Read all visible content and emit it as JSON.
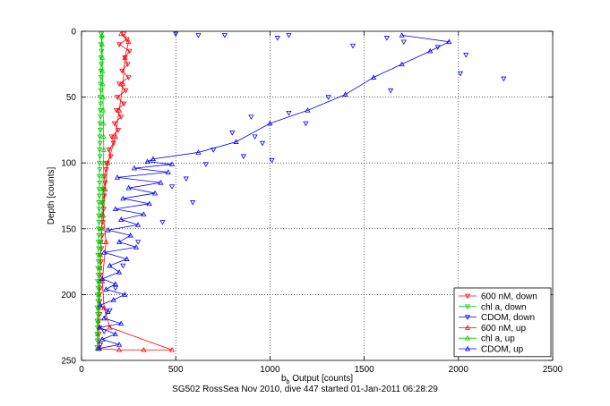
{
  "footer_text": "SG502 RossSea Nov 2010, dive 447 started 01-Jan-2011 06:28:29",
  "chart_data": {
    "type": "scatter",
    "title": "",
    "xlabel_main": "b",
    "xlabel_sub": "b",
    "xlabel_rest": " Output [counts]",
    "ylabel": "Depth [counts]",
    "xlim": [
      0,
      2500
    ],
    "ylim": [
      0,
      250
    ],
    "y_reversed": true,
    "xticks": [
      0,
      500,
      1000,
      1500,
      2000,
      2500
    ],
    "yticks": [
      0,
      50,
      100,
      150,
      200,
      250
    ],
    "grid": true,
    "legend_position": "bottom-right",
    "series": [
      {
        "name": "600 nM, down",
        "color": "#ff0000",
        "marker": "tri-down",
        "line": true,
        "points": [
          [
            225,
            2
          ],
          [
            240,
            6
          ],
          [
            200,
            10
          ],
          [
            255,
            15
          ],
          [
            230,
            20
          ],
          [
            245,
            25
          ],
          [
            215,
            30
          ],
          [
            250,
            35
          ],
          [
            200,
            40
          ],
          [
            235,
            45
          ],
          [
            190,
            50
          ],
          [
            225,
            55
          ],
          [
            185,
            60
          ],
          [
            210,
            65
          ],
          [
            175,
            70
          ],
          [
            195,
            75
          ],
          [
            160,
            80
          ],
          [
            170,
            85
          ],
          [
            145,
            90
          ],
          [
            155,
            95
          ],
          [
            135,
            100
          ],
          [
            130,
            105
          ],
          [
            120,
            110
          ],
          [
            125,
            115
          ],
          [
            115,
            120
          ],
          [
            120,
            125
          ],
          [
            110,
            130
          ],
          [
            118,
            135
          ],
          [
            108,
            140
          ],
          [
            112,
            145
          ],
          [
            105,
            150
          ],
          [
            110,
            155
          ],
          [
            102,
            160
          ],
          [
            106,
            165
          ],
          [
            100,
            170
          ],
          [
            104,
            175
          ],
          [
            98,
            180
          ],
          [
            100,
            185
          ],
          [
            96,
            190
          ],
          [
            99,
            195
          ],
          [
            95,
            200
          ],
          [
            97,
            205
          ],
          [
            94,
            210
          ],
          [
            96,
            215
          ],
          [
            93,
            220
          ],
          [
            95,
            225
          ],
          [
            92,
            230
          ],
          [
            94,
            235
          ],
          [
            93,
            240
          ]
        ]
      },
      {
        "name": "chl a, down",
        "color": "#00cc00",
        "marker": "tri-down",
        "line": true,
        "points": [
          [
            105,
            2
          ],
          [
            108,
            5
          ],
          [
            104,
            10
          ],
          [
            106,
            15
          ],
          [
            103,
            20
          ],
          [
            105,
            25
          ],
          [
            102,
            30
          ],
          [
            104,
            35
          ],
          [
            101,
            40
          ],
          [
            103,
            45
          ],
          [
            100,
            50
          ],
          [
            102,
            55
          ],
          [
            99,
            60
          ],
          [
            101,
            65
          ],
          [
            98,
            70
          ],
          [
            100,
            75
          ],
          [
            97,
            80
          ],
          [
            99,
            85
          ],
          [
            96,
            90
          ],
          [
            98,
            95
          ],
          [
            95,
            100
          ],
          [
            97,
            105
          ],
          [
            94,
            110
          ],
          [
            96,
            115
          ],
          [
            93,
            120
          ],
          [
            95,
            125
          ],
          [
            92,
            130
          ],
          [
            94,
            135
          ],
          [
            91,
            140
          ],
          [
            93,
            145
          ],
          [
            90,
            150
          ],
          [
            92,
            155
          ],
          [
            89,
            160
          ],
          [
            91,
            165
          ],
          [
            88,
            170
          ],
          [
            90,
            175
          ],
          [
            87,
            180
          ],
          [
            89,
            185
          ],
          [
            86,
            190
          ],
          [
            88,
            195
          ],
          [
            85,
            200
          ],
          [
            87,
            205
          ],
          [
            84,
            210
          ],
          [
            86,
            215
          ],
          [
            83,
            220
          ],
          [
            85,
            225
          ],
          [
            82,
            230
          ],
          [
            84,
            235
          ],
          [
            83,
            240
          ]
        ]
      },
      {
        "name": "CDOM, down",
        "color": "#0000ff",
        "marker": "tri-down",
        "line": false,
        "points": [
          [
            500,
            2
          ],
          [
            620,
            3
          ],
          [
            760,
            3
          ],
          [
            1040,
            5
          ],
          [
            1100,
            3
          ],
          [
            1620,
            5
          ],
          [
            1710,
            8
          ],
          [
            1440,
            11
          ],
          [
            1890,
            12
          ],
          [
            2040,
            18
          ],
          [
            2010,
            32
          ],
          [
            2240,
            36
          ],
          [
            1640,
            45
          ],
          [
            1310,
            50
          ],
          [
            1100,
            62
          ],
          [
            900,
            65
          ],
          [
            1190,
            70
          ],
          [
            800,
            77
          ],
          [
            920,
            80
          ],
          [
            960,
            85
          ],
          [
            700,
            90
          ],
          [
            860,
            95
          ],
          [
            1010,
            98
          ],
          [
            660,
            101
          ],
          [
            555,
            112
          ],
          [
            480,
            118
          ],
          [
            590,
            130
          ],
          [
            430,
            145
          ],
          [
            300,
            160
          ],
          [
            220,
            178
          ],
          [
            180,
            195
          ],
          [
            150,
            212
          ],
          [
            120,
            228
          ],
          [
            100,
            238
          ]
        ]
      },
      {
        "name": "600 nM, up",
        "color": "#ff0000",
        "marker": "tri-up",
        "line": true,
        "points": [
          [
            95,
            241
          ],
          [
            200,
            242
          ],
          [
            330,
            242
          ],
          [
            480,
            242
          ],
          [
            150,
            225
          ],
          [
            120,
            210
          ],
          [
            110,
            190
          ],
          [
            130,
            160
          ],
          [
            115,
            140
          ],
          [
            125,
            120
          ],
          [
            140,
            100
          ],
          [
            180,
            80
          ],
          [
            200,
            60
          ],
          [
            220,
            40
          ],
          [
            230,
            20
          ],
          [
            250,
            8
          ],
          [
            210,
            2
          ]
        ]
      },
      {
        "name": "chl a, up",
        "color": "#00cc00",
        "marker": "tri-up",
        "line": true,
        "points": [
          [
            84,
            241
          ],
          [
            86,
            230
          ],
          [
            88,
            220
          ],
          [
            90,
            210
          ],
          [
            92,
            200
          ],
          [
            95,
            190
          ],
          [
            98,
            180
          ],
          [
            100,
            170
          ],
          [
            103,
            160
          ],
          [
            106,
            150
          ],
          [
            108,
            140
          ],
          [
            111,
            130
          ],
          [
            113,
            120
          ],
          [
            115,
            110
          ],
          [
            117,
            100
          ],
          [
            118,
            90
          ],
          [
            117,
            80
          ],
          [
            116,
            70
          ],
          [
            115,
            60
          ],
          [
            114,
            50
          ],
          [
            112,
            40
          ],
          [
            111,
            30
          ],
          [
            110,
            20
          ],
          [
            109,
            10
          ],
          [
            108,
            3
          ]
        ]
      },
      {
        "name": "CDOM, up",
        "color": "#0000ff",
        "marker": "tri-up",
        "line": true,
        "points": [
          [
            90,
            241
          ],
          [
            200,
            238
          ],
          [
            110,
            234
          ],
          [
            180,
            230
          ],
          [
            95,
            225
          ],
          [
            210,
            222
          ],
          [
            120,
            218
          ],
          [
            140,
            213
          ],
          [
            100,
            208
          ],
          [
            170,
            204
          ],
          [
            230,
            200
          ],
          [
            130,
            196
          ],
          [
            180,
            192
          ],
          [
            110,
            188
          ],
          [
            200,
            183
          ],
          [
            150,
            178
          ],
          [
            240,
            173
          ],
          [
            120,
            168
          ],
          [
            290,
            164
          ],
          [
            200,
            160
          ],
          [
            260,
            155
          ],
          [
            140,
            151
          ],
          [
            300,
            147
          ],
          [
            210,
            143
          ],
          [
            330,
            139
          ],
          [
            180,
            135
          ],
          [
            360,
            131
          ],
          [
            220,
            127
          ],
          [
            390,
            123
          ],
          [
            250,
            119
          ],
          [
            420,
            115
          ],
          [
            190,
            111
          ],
          [
            460,
            107
          ],
          [
            280,
            104
          ],
          [
            480,
            101
          ],
          [
            350,
            99
          ],
          [
            380,
            97
          ],
          [
            620,
            92
          ],
          [
            820,
            84
          ],
          [
            1000,
            70
          ],
          [
            1200,
            60
          ],
          [
            1400,
            48
          ],
          [
            1550,
            35
          ],
          [
            1700,
            25
          ],
          [
            1850,
            15
          ],
          [
            1950,
            8
          ],
          [
            1700,
            3
          ]
        ]
      }
    ]
  }
}
